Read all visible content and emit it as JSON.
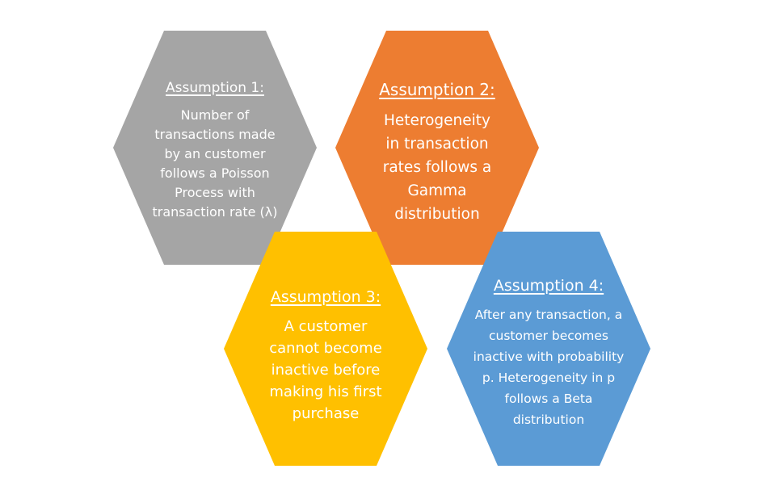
{
  "assumptions": [
    {
      "title": "Assumption 1:",
      "lines": [
        "Number of",
        "transactions made",
        "by an customer",
        "follows a Poisson",
        "Process with",
        "transaction rate (λ)"
      ],
      "color": "#a5a5a5"
    },
    {
      "title": "Assumption 2:",
      "lines": [
        "Heterogeneity",
        "in transaction",
        "rates follows a",
        "Gamma",
        "distribution"
      ],
      "color": "#ed7d31"
    },
    {
      "title": "Assumption 3:",
      "lines": [
        "A customer",
        "cannot become",
        "inactive before",
        "making his first",
        "purchase"
      ],
      "color": "#ffc000"
    },
    {
      "title": "Assumption 4:",
      "lines": [
        "After any transaction, a",
        "customer becomes",
        "inactive with probability",
        "p. Heterogeneity in p",
        "follows a Beta",
        "distribution"
      ],
      "color": "#5b9bd5"
    }
  ]
}
